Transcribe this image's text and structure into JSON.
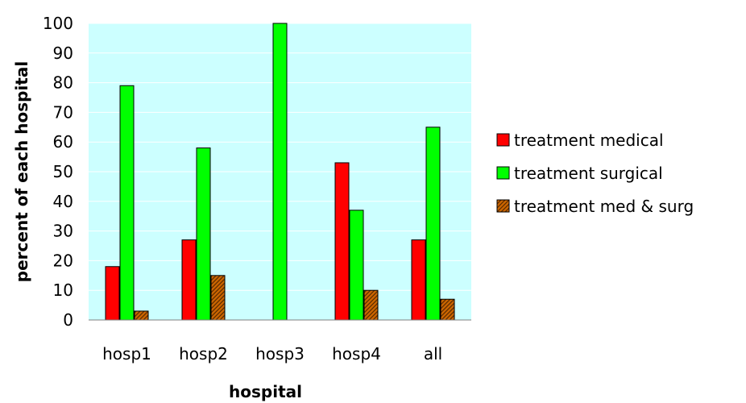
{
  "chart_data": {
    "type": "bar",
    "title": "",
    "xlabel": "hospital",
    "ylabel": "percent of each hospital",
    "ylim": [
      0,
      100
    ],
    "yticks": [
      0,
      10,
      20,
      30,
      40,
      50,
      60,
      70,
      80,
      90,
      100
    ],
    "categories": [
      "hosp1",
      "hosp2",
      "hosp3",
      "hosp4",
      "all"
    ],
    "grid": true,
    "legend_position": "right",
    "plot_background": "#ccffff",
    "series": [
      {
        "name": "treatment medical",
        "color": "#ff0000",
        "pattern": "solid",
        "values": [
          18,
          27,
          0,
          53,
          27
        ]
      },
      {
        "name": "treatment surgical",
        "color": "#00ff00",
        "pattern": "solid",
        "values": [
          79,
          58,
          100,
          37,
          65
        ]
      },
      {
        "name": "treatment med & surg",
        "color": "#cc6600",
        "pattern": "hatched",
        "values": [
          3,
          15,
          0,
          10,
          7
        ]
      }
    ]
  }
}
